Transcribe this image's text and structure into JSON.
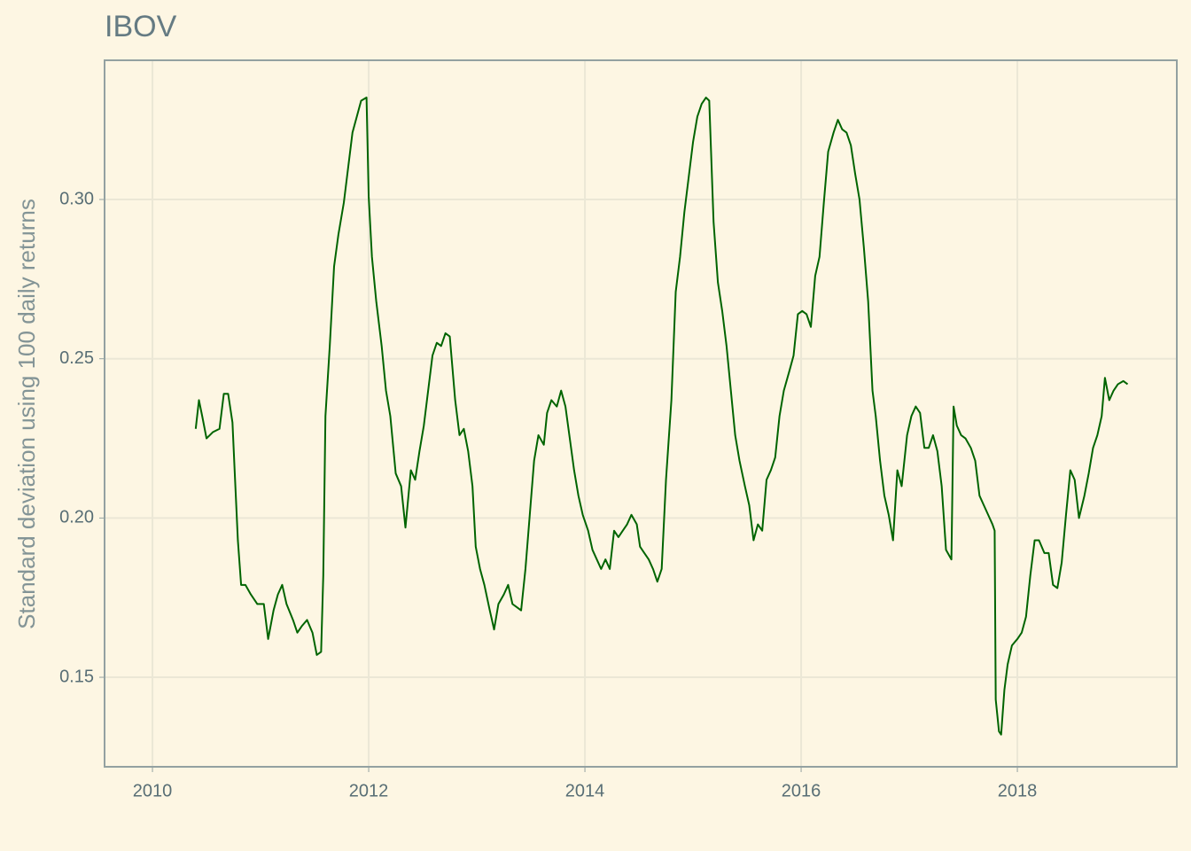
{
  "chart_data": {
    "type": "line",
    "title": "IBOV",
    "ylabel": "Standard deviation using 100 daily returns",
    "xlim": [
      2009.557,
      2019.475
    ],
    "xticks": [
      2010,
      2012,
      2014,
      2016,
      2018
    ],
    "ylim": [
      0.1219,
      0.3437
    ],
    "yticks": [
      0.15,
      {
        "value": 0.2,
        "label": "0.20"
      },
      0.25,
      {
        "value": 0.3,
        "label": "0.30"
      }
    ],
    "grid": true,
    "background": "#fdf6e3",
    "series": [
      {
        "name": "IBOV",
        "color": "#006400",
        "x": [
          2010.4,
          2010.43,
          2010.46,
          2010.5,
          2010.56,
          2010.62,
          2010.66,
          2010.7,
          2010.74,
          2010.76,
          2010.79,
          2010.82,
          2010.86,
          2010.91,
          2010.97,
          2011.03,
          2011.07,
          2011.12,
          2011.16,
          2011.2,
          2011.24,
          2011.3,
          2011.34,
          2011.38,
          2011.43,
          2011.48,
          2011.52,
          2011.56,
          2011.58,
          2011.6,
          2011.64,
          2011.68,
          2011.72,
          2011.77,
          2011.81,
          2011.85,
          2011.89,
          2011.93,
          2011.98,
          2012.0,
          2012.03,
          2012.07,
          2012.12,
          2012.16,
          2012.2,
          2012.25,
          2012.3,
          2012.34,
          2012.39,
          2012.43,
          2012.47,
          2012.51,
          2012.55,
          2012.59,
          2012.63,
          2012.67,
          2012.71,
          2012.75,
          2012.8,
          2012.84,
          2012.88,
          2012.92,
          2012.96,
          2012.99,
          2013.03,
          2013.07,
          2013.12,
          2013.16,
          2013.2,
          2013.25,
          2013.29,
          2013.33,
          2013.37,
          2013.41,
          2013.45,
          2013.49,
          2013.53,
          2013.57,
          2013.62,
          2013.65,
          2013.69,
          2013.74,
          2013.78,
          2013.82,
          2013.86,
          2013.9,
          2013.94,
          2013.98,
          2014.03,
          2014.07,
          2014.11,
          2014.15,
          2014.19,
          2014.23,
          2014.27,
          2014.31,
          2014.35,
          2014.39,
          2014.43,
          2014.48,
          2014.51,
          2014.55,
          2014.59,
          2014.63,
          2014.67,
          2014.71,
          2014.75,
          2014.8,
          2014.84,
          2014.88,
          2014.92,
          2014.96,
          2015.0,
          2015.04,
          2015.08,
          2015.12,
          2015.15,
          2015.19,
          2015.23,
          2015.27,
          2015.31,
          2015.35,
          2015.39,
          2015.43,
          2015.48,
          2015.52,
          2015.56,
          2015.6,
          2015.64,
          2015.68,
          2015.72,
          2015.76,
          2015.8,
          2015.84,
          2015.89,
          2015.93,
          2015.97,
          2016.01,
          2016.05,
          2016.09,
          2016.13,
          2016.17,
          2016.21,
          2016.25,
          2016.3,
          2016.34,
          2016.38,
          2016.42,
          2016.46,
          2016.5,
          2016.54,
          2016.58,
          2016.62,
          2016.66,
          2016.69,
          2016.73,
          2016.77,
          2016.81,
          2016.85,
          2016.89,
          2016.93,
          2016.98,
          2017.02,
          2017.06,
          2017.1,
          2017.14,
          2017.18,
          2017.22,
          2017.26,
          2017.3,
          2017.34,
          2017.39,
          2017.41,
          2017.44,
          2017.48,
          2017.52,
          2017.57,
          2017.61,
          2017.65,
          2017.69,
          2017.73,
          2017.77,
          2017.79,
          2017.8,
          2017.83,
          2017.85,
          2017.88,
          2017.91,
          2017.95,
          2018.0,
          2018.04,
          2018.08,
          2018.12,
          2018.16,
          2018.2,
          2018.25,
          2018.29,
          2018.33,
          2018.37,
          2018.41,
          2018.45,
          2018.49,
          2018.53,
          2018.57,
          2018.62,
          2018.66,
          2018.7,
          2018.74,
          2018.78,
          2018.81,
          2018.85,
          2018.89,
          2018.93,
          2018.98,
          2019.02
        ],
        "values": [
          0.228,
          0.237,
          0.232,
          0.225,
          0.227,
          0.228,
          0.239,
          0.239,
          0.23,
          0.215,
          0.193,
          0.179,
          0.179,
          0.176,
          0.173,
          0.173,
          0.162,
          0.171,
          0.176,
          0.179,
          0.173,
          0.168,
          0.164,
          0.166,
          0.168,
          0.164,
          0.157,
          0.158,
          0.182,
          0.232,
          0.254,
          0.279,
          0.289,
          0.299,
          0.31,
          0.321,
          0.326,
          0.331,
          0.332,
          0.301,
          0.282,
          0.268,
          0.254,
          0.24,
          0.232,
          0.214,
          0.21,
          0.197,
          0.215,
          0.212,
          0.221,
          0.229,
          0.24,
          0.251,
          0.255,
          0.254,
          0.258,
          0.257,
          0.237,
          0.226,
          0.228,
          0.221,
          0.21,
          0.191,
          0.184,
          0.179,
          0.171,
          0.165,
          0.173,
          0.176,
          0.179,
          0.173,
          0.172,
          0.171,
          0.184,
          0.201,
          0.218,
          0.226,
          0.223,
          0.233,
          0.237,
          0.235,
          0.24,
          0.235,
          0.225,
          0.215,
          0.207,
          0.201,
          0.196,
          0.19,
          0.187,
          0.184,
          0.187,
          0.184,
          0.196,
          0.194,
          0.196,
          0.198,
          0.201,
          0.198,
          0.191,
          0.189,
          0.187,
          0.184,
          0.18,
          0.184,
          0.212,
          0.237,
          0.271,
          0.282,
          0.296,
          0.307,
          0.318,
          0.326,
          0.33,
          0.332,
          0.331,
          0.293,
          0.274,
          0.265,
          0.254,
          0.24,
          0.226,
          0.218,
          0.21,
          0.204,
          0.193,
          0.198,
          0.196,
          0.212,
          0.215,
          0.219,
          0.232,
          0.24,
          0.246,
          0.251,
          0.264,
          0.265,
          0.264,
          0.26,
          0.276,
          0.282,
          0.299,
          0.315,
          0.321,
          0.325,
          0.322,
          0.321,
          0.317,
          0.308,
          0.3,
          0.285,
          0.268,
          0.24,
          0.232,
          0.218,
          0.207,
          0.201,
          0.193,
          0.215,
          0.21,
          0.226,
          0.232,
          0.235,
          0.233,
          0.222,
          0.222,
          0.226,
          0.221,
          0.21,
          0.19,
          0.187,
          0.235,
          0.229,
          0.226,
          0.225,
          0.222,
          0.218,
          0.207,
          0.204,
          0.201,
          0.198,
          0.196,
          0.143,
          0.133,
          0.132,
          0.146,
          0.154,
          0.16,
          0.162,
          0.164,
          0.169,
          0.182,
          0.193,
          0.193,
          0.189,
          0.189,
          0.179,
          0.178,
          0.186,
          0.201,
          0.215,
          0.212,
          0.2,
          0.207,
          0.214,
          0.222,
          0.226,
          0.232,
          0.244,
          0.237,
          0.24,
          0.242,
          0.243,
          0.242
        ]
      }
    ]
  }
}
